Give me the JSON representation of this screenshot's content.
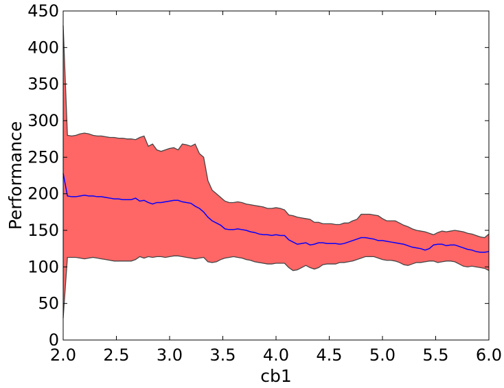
{
  "chart_data": {
    "type": "area",
    "title": "",
    "xlabel": "cb1",
    "ylabel": "Performance",
    "xlim": [
      2.0,
      6.0
    ],
    "ylim": [
      0,
      450
    ],
    "xticks": [
      2.0,
      2.5,
      3.0,
      3.5,
      4.0,
      4.5,
      5.0,
      5.5,
      6.0
    ],
    "xtick_labels": [
      "2.0",
      "2.5",
      "3.0",
      "3.5",
      "4.0",
      "4.5",
      "5.0",
      "5.5",
      "6.0"
    ],
    "yticks": [
      0,
      50,
      100,
      150,
      200,
      250,
      300,
      350,
      400,
      450
    ],
    "ytick_labels": [
      "0",
      "50",
      "100",
      "150",
      "200",
      "250",
      "300",
      "350",
      "400",
      "450"
    ],
    "grid": false,
    "colors": {
      "band_fill": "#ff6666",
      "band_edge": "#444444",
      "mean_line": "#0000ff"
    },
    "x": [
      2.0,
      2.04,
      2.08,
      2.12,
      2.16,
      2.2,
      2.24,
      2.28,
      2.32,
      2.36,
      2.4,
      2.44,
      2.48,
      2.52,
      2.56,
      2.6,
      2.64,
      2.68,
      2.72,
      2.76,
      2.8,
      2.84,
      2.88,
      2.92,
      2.96,
      3.0,
      3.04,
      3.08,
      3.12,
      3.16,
      3.2,
      3.24,
      3.28,
      3.32,
      3.36,
      3.4,
      3.44,
      3.48,
      3.52,
      3.56,
      3.6,
      3.64,
      3.68,
      3.72,
      3.76,
      3.8,
      3.84,
      3.88,
      3.92,
      3.96,
      4.0,
      4.04,
      4.08,
      4.12,
      4.16,
      4.2,
      4.24,
      4.28,
      4.32,
      4.36,
      4.4,
      4.44,
      4.48,
      4.52,
      4.56,
      4.6,
      4.64,
      4.68,
      4.72,
      4.76,
      4.8,
      4.84,
      4.88,
      4.92,
      4.96,
      5.0,
      5.04,
      5.08,
      5.12,
      5.16,
      5.2,
      5.24,
      5.28,
      5.32,
      5.36,
      5.4,
      5.44,
      5.48,
      5.52,
      5.56,
      5.6,
      5.64,
      5.68,
      5.72,
      5.76,
      5.8,
      5.84,
      5.88,
      5.92,
      5.96,
      6.0
    ],
    "series": [
      {
        "role": "upper",
        "values": [
          430,
          280,
          279,
          280,
          282,
          283,
          282,
          280,
          279,
          279,
          278,
          277,
          277,
          276,
          276,
          275,
          275,
          274,
          277,
          279,
          265,
          268,
          260,
          258,
          260,
          262,
          263,
          260,
          268,
          267,
          265,
          268,
          255,
          250,
          218,
          205,
          200,
          195,
          190,
          188,
          188,
          189,
          188,
          186,
          185,
          184,
          183,
          182,
          180,
          180,
          181,
          180,
          178,
          171,
          170,
          168,
          167,
          166,
          165,
          161,
          161,
          159,
          159,
          159,
          158,
          158,
          160,
          160,
          163,
          165,
          172,
          172,
          172,
          171,
          170,
          166,
          163,
          163,
          163,
          160,
          157,
          155,
          152,
          150,
          149,
          148,
          146,
          144,
          147,
          149,
          148,
          149,
          150,
          149,
          148,
          146,
          145,
          143,
          141,
          140,
          145
        ],
        "color": "#444444"
      },
      {
        "role": "mean",
        "values": [
          228,
          197,
          196,
          196,
          197,
          198,
          197,
          197,
          196,
          196,
          195,
          194,
          193,
          193,
          192,
          192,
          192,
          194,
          190,
          191,
          188,
          186,
          188,
          188,
          189,
          190,
          191,
          191,
          189,
          188,
          187,
          183,
          180,
          175,
          168,
          163,
          160,
          157,
          152,
          151,
          151,
          152,
          151,
          150,
          148,
          147,
          145,
          144,
          144,
          143,
          144,
          143,
          143,
          137,
          134,
          131,
          132,
          133,
          130,
          131,
          133,
          133,
          132,
          132,
          132,
          131,
          132,
          134,
          136,
          138,
          140,
          140,
          139,
          138,
          136,
          136,
          135,
          134,
          133,
          132,
          131,
          129,
          127,
          126,
          125,
          123,
          125,
          130,
          131,
          131,
          129,
          130,
          130,
          128,
          126,
          124,
          123,
          121,
          120,
          120,
          121
        ],
        "color": "#0000ff"
      },
      {
        "role": "lower",
        "values": [
          30,
          113,
          113,
          113,
          112,
          111,
          112,
          113,
          112,
          111,
          110,
          109,
          108,
          108,
          108,
          108,
          108,
          110,
          114,
          112,
          114,
          113,
          114,
          114,
          113,
          114,
          115,
          115,
          114,
          113,
          112,
          111,
          112,
          113,
          107,
          106,
          107,
          110,
          112,
          113,
          114,
          113,
          112,
          110,
          109,
          107,
          106,
          105,
          104,
          104,
          105,
          105,
          105,
          99,
          95,
          96,
          99,
          102,
          99,
          97,
          99,
          103,
          104,
          104,
          104,
          106,
          106,
          107,
          108,
          110,
          112,
          114,
          114,
          114,
          112,
          110,
          109,
          109,
          108,
          106,
          103,
          102,
          104,
          106,
          106,
          107,
          108,
          108,
          106,
          107,
          108,
          108,
          107,
          104,
          101,
          100,
          101,
          100,
          99,
          98,
          95
        ],
        "color": "#444444"
      }
    ]
  }
}
